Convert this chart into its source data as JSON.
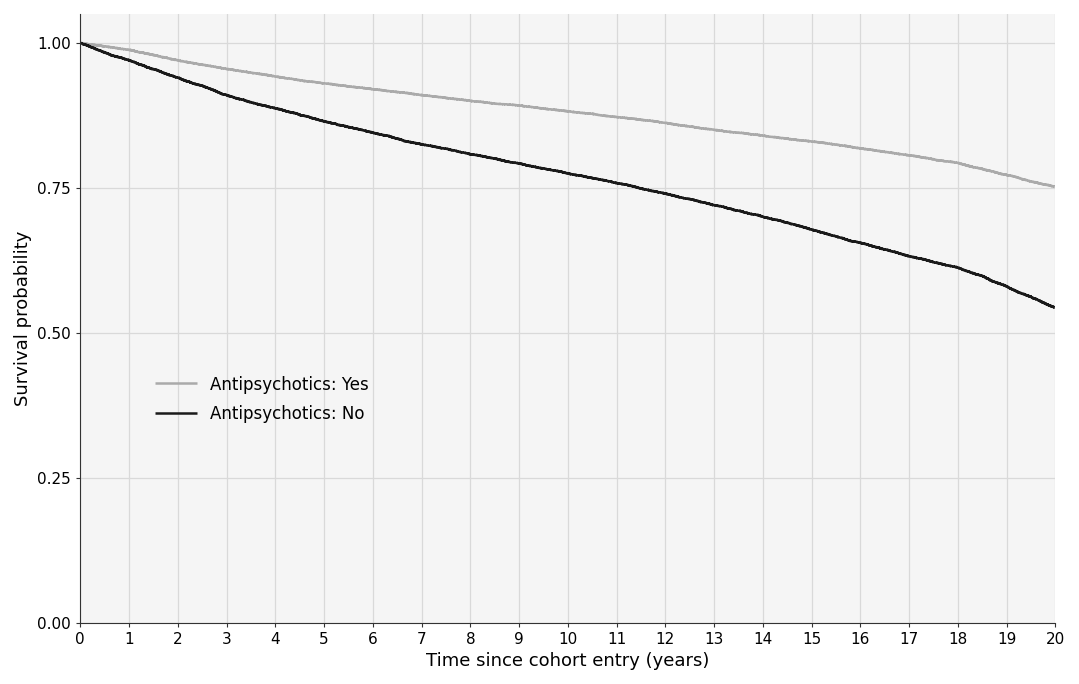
{
  "yes_x": [
    0,
    1,
    2,
    3,
    4,
    5,
    6,
    7,
    8,
    9,
    10,
    11,
    12,
    13,
    14,
    15,
    16,
    17,
    18,
    19,
    20
  ],
  "yes_y": [
    1.0,
    0.988,
    0.97,
    0.955,
    0.942,
    0.93,
    0.92,
    0.91,
    0.9,
    0.892,
    0.882,
    0.872,
    0.862,
    0.85,
    0.84,
    0.83,
    0.818,
    0.806,
    0.793,
    0.772,
    0.752
  ],
  "no_x": [
    0,
    1,
    2,
    3,
    4,
    5,
    6,
    7,
    8,
    9,
    10,
    11,
    12,
    13,
    14,
    15,
    16,
    17,
    18,
    19,
    20
  ],
  "no_y": [
    1.0,
    0.97,
    0.94,
    0.91,
    0.887,
    0.865,
    0.845,
    0.825,
    0.808,
    0.792,
    0.775,
    0.758,
    0.74,
    0.72,
    0.7,
    0.678,
    0.655,
    0.632,
    0.612,
    0.58,
    0.543
  ],
  "yes_color": "#aaaaaa",
  "no_color": "#1a1a1a",
  "yes_label": "Antipsychotics: Yes",
  "no_label": "Antipsychotics: No",
  "xlabel": "Time since cohort entry (years)",
  "ylabel": "Survival probability",
  "xlim": [
    0,
    20
  ],
  "ylim": [
    0.0,
    1.05
  ],
  "xticks": [
    0,
    1,
    2,
    3,
    4,
    5,
    6,
    7,
    8,
    9,
    10,
    11,
    12,
    13,
    14,
    15,
    16,
    17,
    18,
    19,
    20
  ],
  "yticks": [
    0.0,
    0.25,
    0.5,
    0.75,
    1.0
  ],
  "grid_color": "#d9d9d9",
  "bg_color": "#ffffff",
  "panel_bg": "#f5f5f5",
  "line_width": 1.8,
  "font_size_label": 13,
  "font_size_tick": 11,
  "legend_fontsize": 12
}
